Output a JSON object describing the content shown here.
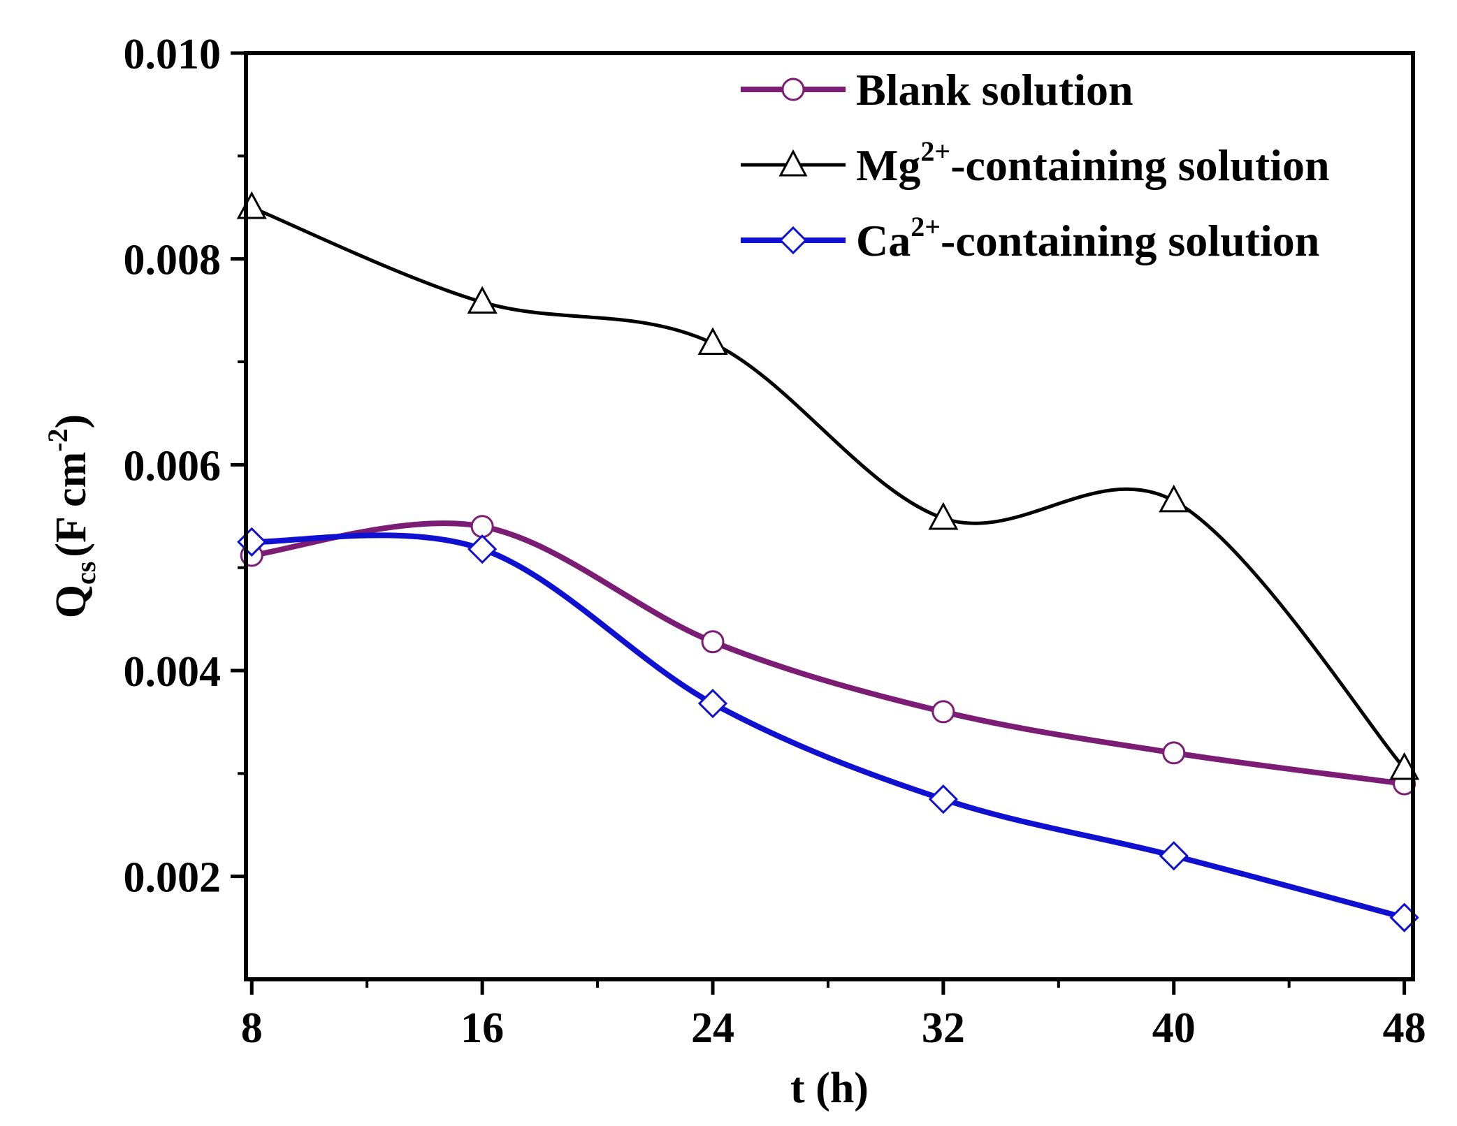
{
  "chart_data": {
    "type": "line",
    "title": "",
    "xlabel": "t (h)",
    "ylabel": {
      "main": "Q",
      "sub": "cs",
      "units_open": "(F cm",
      "units_exp": "-2",
      "units_close": ")"
    },
    "xlim": [
      7.8,
      48.3
    ],
    "ylim": [
      0.001,
      0.01
    ],
    "x_ticks": [
      8,
      16,
      24,
      32,
      40,
      48
    ],
    "x_tick_labels": [
      "8",
      "16",
      "24",
      "32",
      "40",
      "48"
    ],
    "y_ticks": [
      0.002,
      0.004,
      0.006,
      0.008,
      0.01
    ],
    "y_tick_labels": [
      "0.002",
      "0.004",
      "0.006",
      "0.008",
      "0.010"
    ],
    "grid": false,
    "legend_position": "top-right",
    "series": [
      {
        "name": "Blank solution",
        "legend_main": "Blank solution",
        "legend_sup": "",
        "legend_rest": "",
        "color": "#7b1c75",
        "marker": "circle",
        "x": [
          8,
          16,
          24,
          32,
          40,
          48
        ],
        "values": [
          0.00512,
          0.0054,
          0.00428,
          0.0036,
          0.0032,
          0.0029
        ]
      },
      {
        "name": "Mg2+-containing solution",
        "legend_main": "Mg",
        "legend_sup": "2+",
        "legend_rest": "-containing solution",
        "color": "#000000",
        "marker": "triangle",
        "x": [
          8,
          16,
          24,
          32,
          40,
          48
        ],
        "values": [
          0.0085,
          0.00758,
          0.00718,
          0.00548,
          0.00565,
          0.00305
        ]
      },
      {
        "name": "Ca2+-containing solution",
        "legend_main": "Ca",
        "legend_sup": "2+",
        "legend_rest": "-containing solution",
        "color": "#1010d0",
        "marker": "diamond",
        "x": [
          8,
          16,
          24,
          32,
          40,
          48
        ],
        "values": [
          0.00525,
          0.00518,
          0.00368,
          0.00275,
          0.0022,
          0.0016
        ]
      }
    ]
  }
}
